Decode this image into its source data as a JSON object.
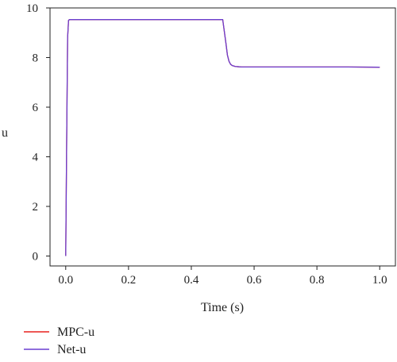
{
  "chart_data": {
    "type": "line",
    "title": "",
    "xlabel": "Time (s)",
    "ylabel": "u",
    "xlim": [
      -0.05,
      1.05
    ],
    "ylim": [
      -0.4,
      10
    ],
    "xticks": [
      0.0,
      0.2,
      0.4,
      0.6,
      0.8,
      1.0
    ],
    "xtick_labels": [
      "0.0",
      "0.2",
      "0.4",
      "0.6",
      "0.8",
      "1.0"
    ],
    "yticks": [
      0,
      2,
      4,
      6,
      8,
      10
    ],
    "ytick_labels": [
      "0",
      "2",
      "4",
      "6",
      "8",
      "10"
    ],
    "grid": false,
    "legend_position": "bottom-left, below the plot",
    "series": [
      {
        "name": "MPC-u",
        "color": "#e8211d",
        "x": [
          0.0,
          0.003,
          0.006,
          0.009,
          0.012,
          0.015,
          0.1,
          0.2,
          0.3,
          0.4,
          0.49,
          0.5,
          0.51,
          0.515,
          0.52,
          0.525,
          0.53,
          0.54,
          0.55,
          0.56,
          0.58,
          0.6,
          0.7,
          0.8,
          0.9,
          1.0
        ],
        "y": [
          0.0,
          4.6,
          8.8,
          9.5,
          9.53,
          9.53,
          9.53,
          9.53,
          9.53,
          9.53,
          9.53,
          9.53,
          8.6,
          8.1,
          7.85,
          7.73,
          7.68,
          7.64,
          7.63,
          7.62,
          7.62,
          7.62,
          7.62,
          7.62,
          7.62,
          7.61
        ]
      },
      {
        "name": "Net-u",
        "color": "#6a3fd0",
        "x": [
          0.0,
          0.003,
          0.006,
          0.009,
          0.012,
          0.015,
          0.1,
          0.2,
          0.3,
          0.4,
          0.49,
          0.5,
          0.51,
          0.515,
          0.52,
          0.525,
          0.53,
          0.54,
          0.55,
          0.56,
          0.58,
          0.6,
          0.7,
          0.8,
          0.9,
          1.0
        ],
        "y": [
          0.0,
          4.6,
          8.8,
          9.5,
          9.53,
          9.53,
          9.53,
          9.53,
          9.53,
          9.53,
          9.53,
          9.53,
          8.6,
          8.1,
          7.85,
          7.73,
          7.68,
          7.64,
          7.63,
          7.62,
          7.62,
          7.62,
          7.62,
          7.62,
          7.62,
          7.61
        ]
      }
    ]
  }
}
